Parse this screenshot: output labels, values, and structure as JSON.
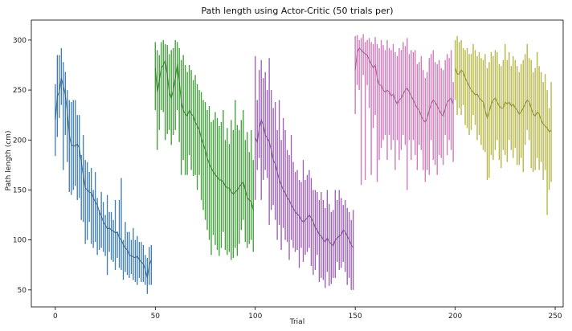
{
  "chart_data": {
    "type": "line",
    "title": "Path length using Actor-Critic (50 trials per)",
    "xlabel": "Trial",
    "ylabel": "Path length (cm)",
    "xlim": [
      -12,
      254
    ],
    "ylim": [
      33,
      320
    ],
    "xticks": [
      0,
      50,
      100,
      150,
      200,
      250
    ],
    "yticks": [
      50,
      100,
      150,
      200,
      250,
      300
    ],
    "grid": false,
    "legend": "none",
    "series": [
      {
        "color": "#3b7bb0",
        "x_start": 0,
        "mean": [
          220,
          244,
          248,
          262,
          254,
          245,
          228,
          205,
          195,
          194,
          194,
          196,
          192,
          178,
          164,
          152,
          150,
          148,
          147,
          142,
          138,
          135,
          128,
          124,
          118,
          115,
          111,
          112,
          110,
          109,
          107,
          108,
          102,
          100,
          95,
          92,
          90,
          85,
          84,
          83,
          82,
          84,
          80,
          78,
          76,
          70,
          62,
          75,
          80
        ],
        "low": [
          184,
          203,
          222,
          235,
          170,
          205,
          178,
          148,
          145,
          150,
          154,
          140,
          142,
          120,
          118,
          96,
          100,
          118,
          96,
          92,
          98,
          85,
          90,
          92,
          88,
          84,
          65,
          88,
          80,
          78,
          70,
          82,
          72,
          70,
          60,
          68,
          65,
          62,
          66,
          60,
          58,
          55,
          62,
          58,
          58,
          55,
          46,
          55,
          55
        ],
        "high": [
          256,
          285,
          285,
          292,
          278,
          268,
          250,
          240,
          238,
          240,
          240,
          225,
          225,
          185,
          205,
          180,
          178,
          168,
          172,
          150,
          168,
          142,
          130,
          148,
          138,
          125,
          145,
          128,
          128,
          120,
          140,
          108,
          140,
          162,
          100,
          118,
          108,
          108,
          100,
          112,
          100,
          104,
          98,
          98,
          95,
          85,
          82,
          93,
          95
        ]
      },
      {
        "color": "#3a9e32",
        "x_start": 50,
        "mean": [
          272,
          248,
          260,
          272,
          275,
          280,
          265,
          248,
          242,
          250,
          262,
          276,
          258,
          238,
          230,
          226,
          224,
          230,
          226,
          224,
          218,
          214,
          210,
          202,
          196,
          190,
          182,
          176,
          172,
          168,
          165,
          163,
          160,
          160,
          158,
          154,
          152,
          152,
          148,
          146,
          148,
          150,
          153,
          156,
          158,
          150,
          142,
          140,
          138,
          130
        ],
        "low": [
          230,
          190,
          210,
          230,
          228,
          200,
          206,
          210,
          195,
          205,
          210,
          230,
          198,
          165,
          180,
          165,
          165,
          185,
          170,
          164,
          165,
          150,
          165,
          140,
          130,
          120,
          110,
          100,
          85,
          105,
          95,
          90,
          84,
          92,
          108,
          90,
          85,
          88,
          80,
          82,
          92,
          84,
          96,
          110,
          120,
          98,
          92,
          96,
          100,
          88
        ],
        "high": [
          298,
          290,
          285,
          298,
          300,
          296,
          295,
          286,
          290,
          292,
          300,
          298,
          292,
          280,
          285,
          275,
          268,
          275,
          270,
          260,
          265,
          256,
          250,
          248,
          240,
          238,
          230,
          234,
          218,
          220,
          228,
          222,
          214,
          218,
          230,
          200,
          212,
          196,
          220,
          210,
          240,
          215,
          210,
          220,
          230,
          200,
          208,
          188,
          210,
          180
        ]
      },
      {
        "color": "#9b59b6",
        "x_start": 100,
        "mean": [
          202,
          198,
          212,
          220,
          215,
          205,
          202,
          198,
          190,
          180,
          176,
          168,
          160,
          155,
          150,
          147,
          142,
          140,
          135,
          132,
          128,
          126,
          124,
          120,
          118,
          120,
          122,
          125,
          122,
          118,
          112,
          110,
          105,
          104,
          100,
          98,
          102,
          98,
          96,
          94,
          100,
          102,
          104,
          105,
          110,
          108,
          104,
          100,
          95,
          92
        ],
        "low": [
          140,
          170,
          182,
          140,
          160,
          170,
          162,
          115,
          130,
          135,
          120,
          100,
          115,
          90,
          112,
          100,
          98,
          80,
          100,
          92,
          88,
          90,
          72,
          92,
          78,
          85,
          88,
          92,
          74,
          65,
          70,
          85,
          58,
          62,
          60,
          52,
          68,
          54,
          56,
          62,
          62,
          78,
          70,
          72,
          78,
          68,
          55,
          62,
          50,
          50
        ],
        "high": [
          284,
          240,
          270,
          280,
          262,
          268,
          250,
          282,
          250,
          232,
          238,
          210,
          240,
          200,
          222,
          210,
          190,
          185,
          205,
          178,
          168,
          170,
          160,
          158,
          180,
          160,
          165,
          170,
          162,
          150,
          150,
          148,
          140,
          148,
          140,
          132,
          150,
          136,
          128,
          130,
          150,
          140,
          150,
          142,
          135,
          140,
          132,
          128,
          120,
          130
        ]
      },
      {
        "color": "#d070b8",
        "x_start": 150,
        "mean": [
          270,
          288,
          292,
          290,
          288,
          286,
          285,
          280,
          276,
          272,
          275,
          262,
          255,
          255,
          250,
          248,
          250,
          248,
          244,
          246,
          240,
          236,
          240,
          242,
          246,
          250,
          252,
          248,
          244,
          240,
          236,
          232,
          230,
          224,
          220,
          218,
          222,
          230,
          236,
          240,
          238,
          234,
          230,
          226,
          224,
          232,
          238,
          240,
          242,
          236
        ],
        "low": [
          226,
          255,
          250,
          155,
          265,
          160,
          255,
          232,
          165,
          212,
          225,
          158,
          180,
          192,
          200,
          205,
          180,
          205,
          190,
          200,
          170,
          200,
          180,
          190,
          205,
          195,
          150,
          200,
          180,
          200,
          185,
          170,
          195,
          190,
          170,
          158,
          170,
          165,
          200,
          180,
          175,
          165,
          185,
          182,
          175,
          205,
          185,
          200,
          190,
          178
        ],
        "high": [
          304,
          305,
          300,
          302,
          306,
          298,
          300,
          302,
          298,
          296,
          303,
          296,
          292,
          300,
          295,
          290,
          300,
          292,
          290,
          296,
          288,
          284,
          292,
          290,
          298,
          294,
          302,
          286,
          290,
          288,
          290,
          276,
          278,
          284,
          270,
          262,
          268,
          282,
          286,
          290,
          278,
          276,
          280,
          272,
          270,
          280,
          286,
          282,
          290,
          258
        ]
      },
      {
        "color": "#b2b33a",
        "x_start": 200,
        "mean": [
          272,
          266,
          266,
          270,
          268,
          262,
          258,
          254,
          250,
          248,
          245,
          246,
          242,
          240,
          238,
          230,
          222,
          228,
          236,
          240,
          242,
          238,
          234,
          232,
          232,
          238,
          236,
          238,
          234,
          236,
          232,
          230,
          226,
          228,
          232,
          236,
          240,
          238,
          232,
          226,
          224,
          228,
          226,
          220,
          216,
          214,
          212,
          208,
          210
        ],
        "low": [
          240,
          225,
          232,
          225,
          235,
          215,
          212,
          205,
          210,
          225,
          215,
          200,
          205,
          195,
          190,
          188,
          160,
          162,
          185,
          180,
          190,
          200,
          180,
          172,
          190,
          185,
          178,
          200,
          190,
          182,
          192,
          175,
          175,
          182,
          168,
          195,
          210,
          200,
          172,
          168,
          170,
          182,
          170,
          178,
          160,
          170,
          125,
          150,
          158
        ],
        "high": [
          300,
          304,
          298,
          300,
          292,
          290,
          292,
          286,
          286,
          296,
          290,
          284,
          288,
          282,
          280,
          286,
          272,
          278,
          288,
          284,
          290,
          288,
          276,
          274,
          280,
          296,
          280,
          288,
          274,
          284,
          280,
          274,
          268,
          276,
          280,
          286,
          296,
          282,
          280,
          268,
          272,
          288,
          274,
          268,
          258,
          266,
          250,
          232,
          258
        ]
      }
    ]
  }
}
